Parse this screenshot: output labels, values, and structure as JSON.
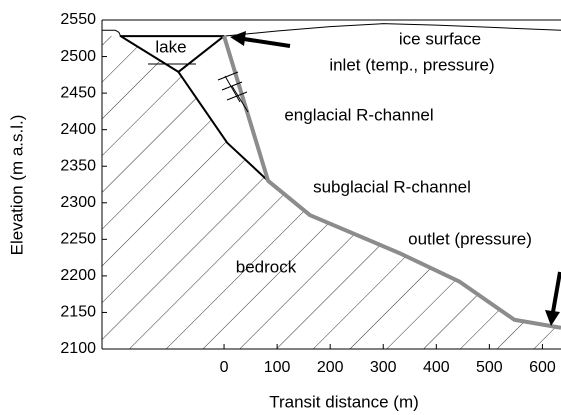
{
  "chart_data": {
    "type": "line",
    "xlabel": "Transit distance (m)",
    "ylabel": "Elevation (m a.s.l.)",
    "xlim": [
      -230,
      635
    ],
    "ylim": [
      2100,
      2550
    ],
    "xticks": [
      0,
      100,
      200,
      300,
      400,
      500,
      600
    ],
    "yticks": [
      2100,
      2150,
      2200,
      2250,
      2300,
      2350,
      2400,
      2450,
      2500,
      2550
    ],
    "annotations": [
      "lake",
      "ice surface",
      "inlet (temp., pressure)",
      "englacial R-channel",
      "subglacial R-channel",
      "outlet (pressure)",
      "bedrock"
    ],
    "series": [
      {
        "color": "#000000",
        "width": 1,
        "x": [
          -230,
          -205,
          -198,
          -195,
          0,
          100,
          200,
          300,
          400,
          500,
          635
        ],
        "values": [
          2536,
          2536,
          2533,
          2528,
          2528,
          2535,
          2541,
          2545,
          2543,
          2540,
          2536
        ]
      },
      {
        "color": "#000000",
        "width": 2,
        "x": [
          0,
          -195,
          -86,
          6,
          83
        ],
        "values": [
          2528,
          2528,
          2479,
          2382,
          2330
        ]
      },
      {
        "color": "#000000",
        "width": 2,
        "x": [
          -86,
          0
        ],
        "values": [
          2479,
          2528
        ]
      },
      {
        "color": "#8c8c8c",
        "width": 4,
        "x": [
          0,
          83,
          162,
          331,
          444,
          547,
          635
        ],
        "values": [
          2528,
          2330,
          2283,
          2231,
          2192,
          2140,
          2129
        ]
      }
    ]
  }
}
